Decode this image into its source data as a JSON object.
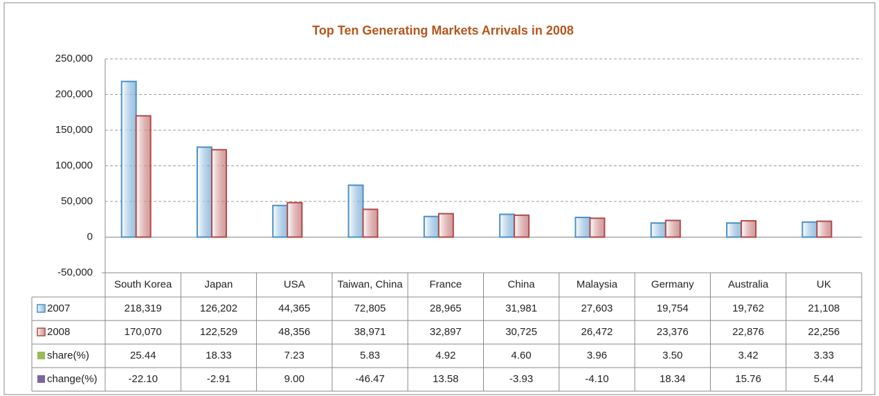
{
  "chart_data": {
    "type": "bar",
    "title": "Top Ten Generating Markets Arrivals in 2008",
    "categories": [
      "South Korea",
      "Japan",
      "USA",
      "Taiwan, China",
      "France",
      "China",
      "Malaysia",
      "Germany",
      "Australia",
      "UK"
    ],
    "series": [
      {
        "name": "2007",
        "color": "#4a90c8",
        "values": [
          218319,
          126202,
          44365,
          72805,
          28965,
          31981,
          27603,
          19754,
          19762,
          21108
        ],
        "value_labels": [
          "218,319",
          "126,202",
          "44,365",
          "72,805",
          "28,965",
          "31,981",
          "27,603",
          "19,754",
          "19,762",
          "21,108"
        ]
      },
      {
        "name": "2008",
        "color": "#b04a48",
        "values": [
          170070,
          122529,
          48356,
          38971,
          32897,
          30725,
          26472,
          23376,
          22876,
          22256
        ],
        "value_labels": [
          "170,070",
          "122,529",
          "48,356",
          "38,971",
          "32,897",
          "30,725",
          "26,472",
          "23,376",
          "22,876",
          "22,256"
        ]
      },
      {
        "name": "share(%)",
        "color": "#9bbb59",
        "values": [
          25.44,
          18.33,
          7.23,
          5.83,
          4.92,
          4.6,
          3.96,
          3.5,
          3.42,
          3.33
        ],
        "value_labels": [
          "25.44",
          "18.33",
          "7.23",
          "5.83",
          "4.92",
          "4.60",
          "3.96",
          "3.50",
          "3.42",
          "3.33"
        ]
      },
      {
        "name": "change(%)",
        "color": "#8064a2",
        "values": [
          -22.1,
          -2.91,
          9,
          -46.47,
          13.58,
          -3.93,
          -4.1,
          18.34,
          15.76,
          5.44
        ],
        "value_labels": [
          "-22.10",
          "-2.91",
          "9.00",
          "-46.47",
          "13.58",
          "-3.93",
          "-4.10",
          "18.34",
          "15.76",
          "5.44"
        ]
      }
    ],
    "ylim": [
      -50000,
      250000
    ],
    "yticks": [
      {
        "value": -50000,
        "label": "-50,000"
      },
      0,
      {
        "value": 50000,
        "label": "50,000"
      },
      {
        "value": 100000,
        "label": "100,000"
      },
      {
        "value": 150000,
        "label": "150,000"
      },
      {
        "value": 200000,
        "label": "200,000"
      },
      {
        "value": 250000,
        "label": "250,000"
      }
    ],
    "grid": true
  }
}
